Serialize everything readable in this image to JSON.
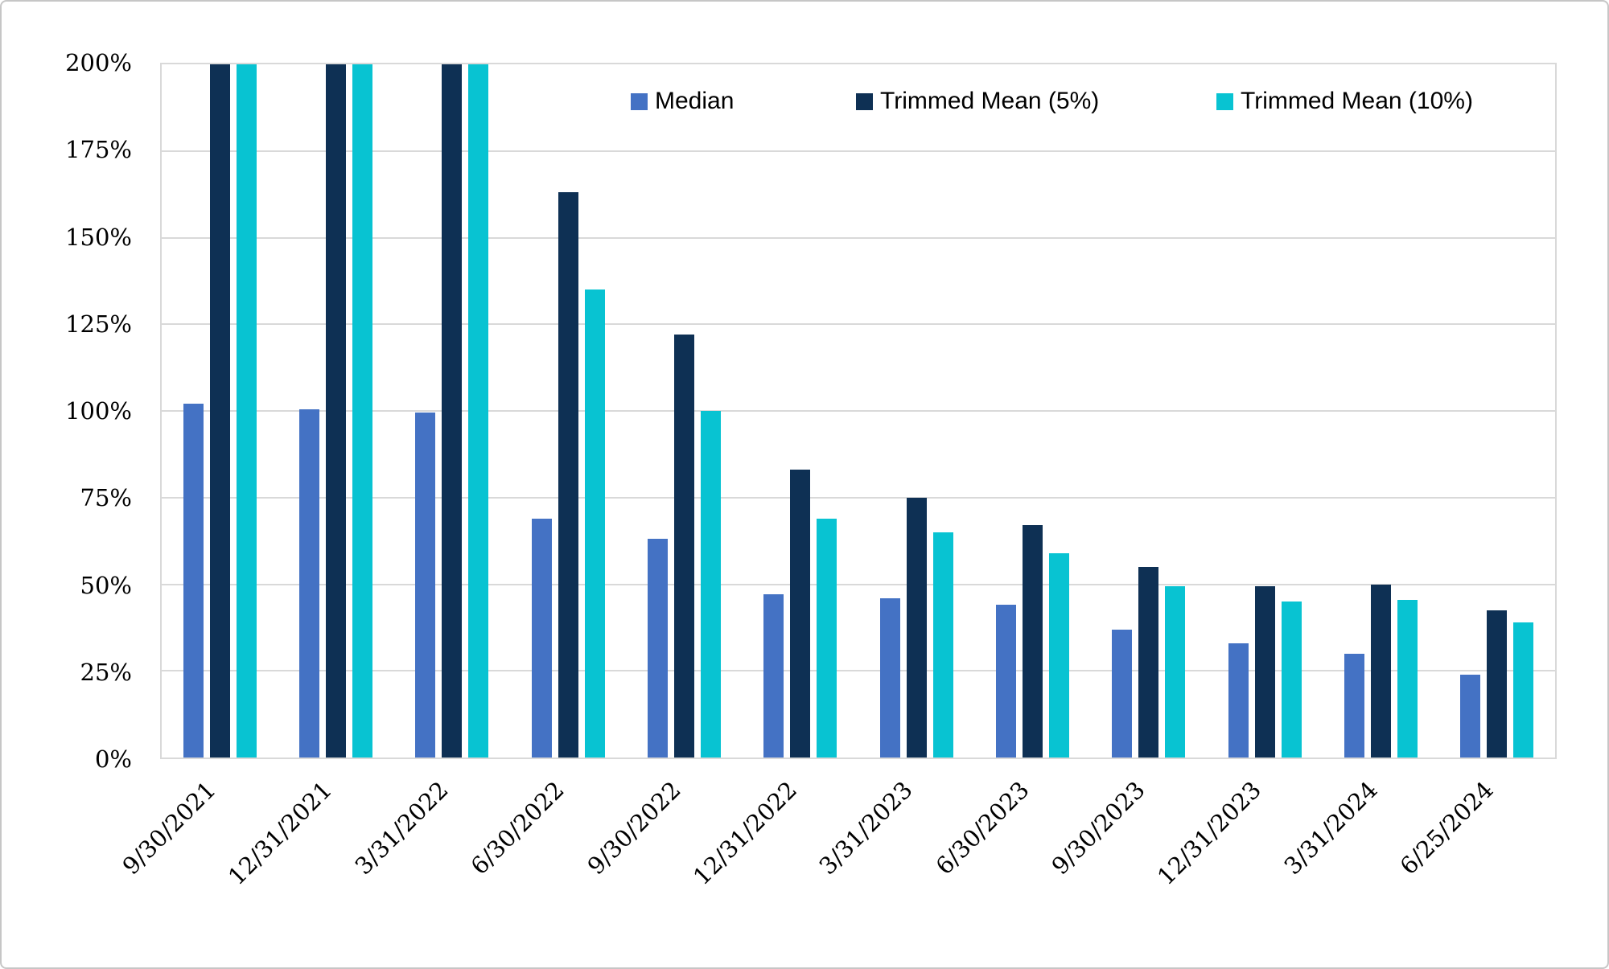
{
  "canvas": {
    "background": "#FFFFFF",
    "border_color": "#C6C6C6"
  },
  "legend": {
    "items": [
      {
        "label": "Median",
        "color": "#4472C4"
      },
      {
        "label": "Trimmed Mean (5%)",
        "color": "#0E3054"
      },
      {
        "label": "Trimmed Mean (10%)",
        "color": "#08C3D2"
      }
    ]
  },
  "chart_data": {
    "type": "bar",
    "title": "",
    "xlabel": "",
    "ylabel": "",
    "categories": [
      "9/30/2021",
      "12/31/2021",
      "3/31/2022",
      "6/30/2022",
      "9/30/2022",
      "12/31/2022",
      "3/31/2023",
      "6/30/2023",
      "9/30/2023",
      "12/31/2023",
      "3/31/2024",
      "6/25/2024"
    ],
    "series": [
      {
        "name": "Median",
        "color": "#4472C4",
        "values": [
          102,
          100.5,
          99.5,
          69,
          63,
          47,
          46,
          44,
          37,
          33,
          30,
          24
        ]
      },
      {
        "name": "Trimmed Mean (5%)",
        "color": "#0E3054",
        "values": [
          200,
          200,
          200,
          163,
          122,
          83,
          75,
          67,
          55,
          49.5,
          50,
          42.5
        ],
        "clipped_at_ymax": [
          true,
          true,
          true,
          false,
          false,
          false,
          false,
          false,
          false,
          false,
          false,
          false
        ]
      },
      {
        "name": "Trimmed Mean (10%)",
        "color": "#08C3D2",
        "values": [
          200,
          200,
          200,
          135,
          100,
          69,
          65,
          59,
          49.5,
          45,
          45.5,
          39
        ],
        "clipped_at_ymax": [
          true,
          true,
          true,
          false,
          false,
          false,
          false,
          false,
          false,
          false,
          false,
          false
        ]
      }
    ],
    "ylim": [
      0,
      200
    ],
    "ytick_step": 25,
    "ytick_labels": [
      "0%",
      "25%",
      "50%",
      "75%",
      "100%",
      "125%",
      "150%",
      "175%",
      "200%"
    ],
    "grid": true,
    "gridline_color": "#D9D9D9",
    "legend_position": "top-inside",
    "note": "Bars shown at 200% are clipped at the axis maximum"
  }
}
